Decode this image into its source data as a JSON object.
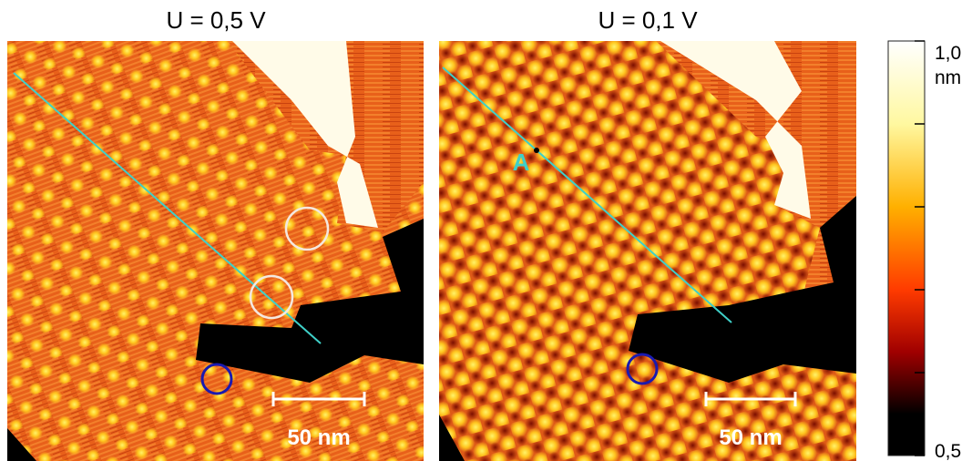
{
  "panels": [
    {
      "title": "U = 0,5 V",
      "scale_bar": "50 nm"
    },
    {
      "title": "U = 0,1 V",
      "scale_bar": "50 nm",
      "marker": "A"
    }
  ],
  "colorbar": {
    "unit": "nm",
    "range": [
      0.5,
      1.0
    ],
    "ticks": [
      {
        "value": 1.0,
        "label": "1,0"
      },
      {
        "value": 0.5,
        "label": "0,5"
      }
    ],
    "minor_ticks": [
      0.9,
      0.8,
      0.7,
      0.6
    ]
  }
}
